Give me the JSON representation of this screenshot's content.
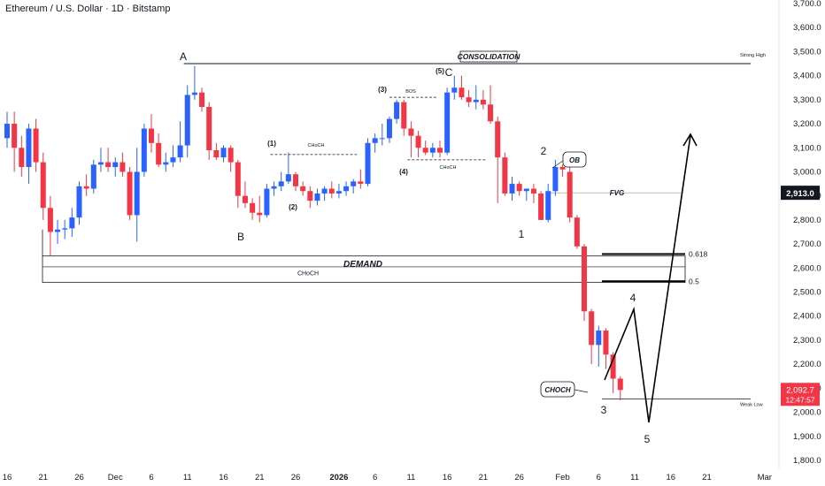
{
  "header": {
    "title": "Ethereum / U.S. Dollar · 1D · Bitstamp"
  },
  "colors": {
    "up": "#2962ff",
    "down": "#f23645",
    "axis_text": "#131722",
    "grid_line": "#b2b5be"
  },
  "chart_data": {
    "type": "candlestick",
    "title": "Ethereum / U.S. Dollar · 1D · Bitstamp",
    "ylim": [
      1750,
      3720
    ],
    "y_ticks": [
      "3,700.0",
      "3,600.0",
      "3,500.0",
      "3,400.0",
      "3,300.0",
      "3,200.0",
      "3,100.0",
      "3,000.0",
      "2,900.0",
      "2,800.0",
      "2,700.0",
      "2,600.0",
      "2,500.0",
      "2,400.0",
      "2,300.0",
      "2,200.0",
      "2,100.0",
      "2,000.0",
      "1,900.0",
      "1,800.0"
    ],
    "y_tick_values": [
      3700,
      3600,
      3500,
      3400,
      3300,
      3200,
      3100,
      3000,
      2900,
      2800,
      2700,
      2600,
      2500,
      2400,
      2300,
      2200,
      2100,
      2000,
      1900,
      1800
    ],
    "x_ticks": [
      {
        "label": "16",
        "day": 0
      },
      {
        "label": "21",
        "day": 5
      },
      {
        "label": "26",
        "day": 10
      },
      {
        "label": "Dec",
        "day": 15
      },
      {
        "label": "6",
        "day": 20
      },
      {
        "label": "11",
        "day": 25
      },
      {
        "label": "16",
        "day": 30
      },
      {
        "label": "21",
        "day": 35
      },
      {
        "label": "26",
        "day": 40
      },
      {
        "label": "2026",
        "day": 46
      },
      {
        "label": "6",
        "day": 51
      },
      {
        "label": "11",
        "day": 56
      },
      {
        "label": "16",
        "day": 61
      },
      {
        "label": "21",
        "day": 66
      },
      {
        "label": "26",
        "day": 71
      },
      {
        "label": "Feb",
        "day": 77
      },
      {
        "label": "6",
        "day": 82
      },
      {
        "label": "11",
        "day": 87
      },
      {
        "label": "16",
        "day": 92
      },
      {
        "label": "21",
        "day": 97
      },
      {
        "label": "Mar",
        "day": 105
      }
    ],
    "candles": [
      {
        "o": 3140,
        "h": 3250,
        "l": 3100,
        "c": 3200
      },
      {
        "o": 3200,
        "h": 3250,
        "l": 3000,
        "c": 3100
      },
      {
        "o": 3100,
        "h": 3150,
        "l": 2980,
        "c": 3020
      },
      {
        "o": 3020,
        "h": 3200,
        "l": 2950,
        "c": 3180
      },
      {
        "o": 3180,
        "h": 3220,
        "l": 3000,
        "c": 3040
      },
      {
        "o": 3040,
        "h": 3080,
        "l": 2800,
        "c": 2850
      },
      {
        "o": 2850,
        "h": 2900,
        "l": 2650,
        "c": 2750
      },
      {
        "o": 2750,
        "h": 2800,
        "l": 2700,
        "c": 2760
      },
      {
        "o": 2760,
        "h": 2800,
        "l": 2720,
        "c": 2765
      },
      {
        "o": 2765,
        "h": 2850,
        "l": 2730,
        "c": 2810
      },
      {
        "o": 2810,
        "h": 2960,
        "l": 2780,
        "c": 2940
      },
      {
        "o": 2940,
        "h": 2990,
        "l": 2900,
        "c": 2930
      },
      {
        "o": 2930,
        "h": 3050,
        "l": 2910,
        "c": 3030
      },
      {
        "o": 3030,
        "h": 3100,
        "l": 3000,
        "c": 3040
      },
      {
        "o": 3040,
        "h": 3100,
        "l": 3000,
        "c": 3020
      },
      {
        "o": 3020,
        "h": 3060,
        "l": 2980,
        "c": 3040
      },
      {
        "o": 3040,
        "h": 3080,
        "l": 2980,
        "c": 3000
      },
      {
        "o": 3000,
        "h": 3020,
        "l": 2800,
        "c": 2820
      },
      {
        "o": 2820,
        "h": 3100,
        "l": 2710,
        "c": 3000
      },
      {
        "o": 3000,
        "h": 3200,
        "l": 2980,
        "c": 3180
      },
      {
        "o": 3180,
        "h": 3240,
        "l": 3080,
        "c": 3120
      },
      {
        "o": 3120,
        "h": 3160,
        "l": 3020,
        "c": 3030
      },
      {
        "o": 3030,
        "h": 3080,
        "l": 3000,
        "c": 3040
      },
      {
        "o": 3040,
        "h": 3110,
        "l": 3020,
        "c": 3060
      },
      {
        "o": 3060,
        "h": 3210,
        "l": 3040,
        "c": 3110
      },
      {
        "o": 3110,
        "h": 3360,
        "l": 3060,
        "c": 3320
      },
      {
        "o": 3320,
        "h": 3440,
        "l": 3300,
        "c": 3330
      },
      {
        "o": 3330,
        "h": 3350,
        "l": 3250,
        "c": 3270
      },
      {
        "o": 3270,
        "h": 3290,
        "l": 3050,
        "c": 3090
      },
      {
        "o": 3090,
        "h": 3120,
        "l": 3050,
        "c": 3060
      },
      {
        "o": 3060,
        "h": 3110,
        "l": 3040,
        "c": 3100
      },
      {
        "o": 3100,
        "h": 3110,
        "l": 3000,
        "c": 3040
      },
      {
        "o": 3040,
        "h": 3050,
        "l": 2850,
        "c": 2900
      },
      {
        "o": 2900,
        "h": 2960,
        "l": 2850,
        "c": 2870
      },
      {
        "o": 2870,
        "h": 2890,
        "l": 2800,
        "c": 2830
      },
      {
        "o": 2830,
        "h": 2900,
        "l": 2790,
        "c": 2820
      },
      {
        "o": 2820,
        "h": 2950,
        "l": 2810,
        "c": 2930
      },
      {
        "o": 2930,
        "h": 2960,
        "l": 2900,
        "c": 2940
      },
      {
        "o": 2940,
        "h": 3000,
        "l": 2920,
        "c": 2960
      },
      {
        "o": 2960,
        "h": 3080,
        "l": 2950,
        "c": 2990
      },
      {
        "o": 2990,
        "h": 3000,
        "l": 2920,
        "c": 2940
      },
      {
        "o": 2940,
        "h": 2960,
        "l": 2900,
        "c": 2920
      },
      {
        "o": 2920,
        "h": 2940,
        "l": 2850,
        "c": 2880
      },
      {
        "o": 2880,
        "h": 2930,
        "l": 2860,
        "c": 2910
      },
      {
        "o": 2910,
        "h": 2940,
        "l": 2880,
        "c": 2930
      },
      {
        "o": 2930,
        "h": 2960,
        "l": 2890,
        "c": 2910
      },
      {
        "o": 2910,
        "h": 2950,
        "l": 2890,
        "c": 2920
      },
      {
        "o": 2920,
        "h": 2960,
        "l": 2900,
        "c": 2940
      },
      {
        "o": 2940,
        "h": 2970,
        "l": 2910,
        "c": 2960
      },
      {
        "o": 2960,
        "h": 3010,
        "l": 2930,
        "c": 2950
      },
      {
        "o": 2950,
        "h": 3140,
        "l": 2940,
        "c": 3120
      },
      {
        "o": 3120,
        "h": 3160,
        "l": 3080,
        "c": 3140
      },
      {
        "o": 3140,
        "h": 3200,
        "l": 3110,
        "c": 3140
      },
      {
        "o": 3140,
        "h": 3230,
        "l": 3120,
        "c": 3220
      },
      {
        "o": 3220,
        "h": 3300,
        "l": 3200,
        "c": 3290
      },
      {
        "o": 3290,
        "h": 3300,
        "l": 3150,
        "c": 3180
      },
      {
        "o": 3180,
        "h": 3210,
        "l": 3060,
        "c": 3150
      },
      {
        "o": 3150,
        "h": 3170,
        "l": 3060,
        "c": 3100
      },
      {
        "o": 3100,
        "h": 3130,
        "l": 3070,
        "c": 3080
      },
      {
        "o": 3080,
        "h": 3120,
        "l": 3060,
        "c": 3100
      },
      {
        "o": 3100,
        "h": 3130,
        "l": 3060,
        "c": 3080
      },
      {
        "o": 3080,
        "h": 3350,
        "l": 3070,
        "c": 3330
      },
      {
        "o": 3330,
        "h": 3400,
        "l": 3300,
        "c": 3350
      },
      {
        "o": 3350,
        "h": 3400,
        "l": 3300,
        "c": 3310
      },
      {
        "o": 3310,
        "h": 3340,
        "l": 3270,
        "c": 3290
      },
      {
        "o": 3290,
        "h": 3360,
        "l": 3260,
        "c": 3300
      },
      {
        "o": 3300,
        "h": 3340,
        "l": 3260,
        "c": 3280
      },
      {
        "o": 3280,
        "h": 3360,
        "l": 3200,
        "c": 3210
      },
      {
        "o": 3210,
        "h": 3230,
        "l": 2870,
        "c": 3060
      },
      {
        "o": 3060,
        "h": 3080,
        "l": 2900,
        "c": 2910
      },
      {
        "o": 2910,
        "h": 2980,
        "l": 2880,
        "c": 2950
      },
      {
        "o": 2950,
        "h": 2960,
        "l": 2900,
        "c": 2920
      },
      {
        "o": 2920,
        "h": 2930,
        "l": 2880,
        "c": 2930
      },
      {
        "o": 2930,
        "h": 2950,
        "l": 2870,
        "c": 2910
      },
      {
        "o": 2910,
        "h": 2920,
        "l": 2800,
        "c": 2800
      },
      {
        "o": 2800,
        "h": 2950,
        "l": 2790,
        "c": 2920
      },
      {
        "o": 2920,
        "h": 3050,
        "l": 2900,
        "c": 3020
      },
      {
        "o": 3020,
        "h": 3030,
        "l": 2980,
        "c": 3010
      },
      {
        "o": 3000,
        "h": 3020,
        "l": 2790,
        "c": 2810
      },
      {
        "o": 2810,
        "h": 2820,
        "l": 2680,
        "c": 2690
      },
      {
        "o": 2690,
        "h": 2700,
        "l": 2380,
        "c": 2420
      },
      {
        "o": 2420,
        "h": 2430,
        "l": 2200,
        "c": 2280
      },
      {
        "o": 2280,
        "h": 2360,
        "l": 2190,
        "c": 2340
      },
      {
        "o": 2340,
        "h": 2350,
        "l": 2180,
        "c": 2240
      },
      {
        "o": 2240,
        "h": 2250,
        "l": 2080,
        "c": 2140
      },
      {
        "o": 2140,
        "h": 2150,
        "l": 2050,
        "c": 2093
      }
    ],
    "last_price": "2,092.7",
    "countdown": "12:47:57",
    "fvg_price": "2,913.0",
    "labels": {
      "A": "A",
      "B": "B",
      "C": "C",
      "c5": "(5)",
      "w1": "(1)",
      "w2": "(2)",
      "w3": "(3)",
      "w4": "(4)",
      "choch_small_1": "CHoCH",
      "choch_small_2": "CHoCH",
      "bos": "BOS",
      "consolidation": "CONSOLIDATION",
      "strong_high": "Strong High",
      "demand": "DEMAND",
      "choch_zone": "CHoCH",
      "fvg": "FVG",
      "ob": "OB",
      "choch_box": "CHOCH",
      "fib_618": "0.618",
      "fib_5": "0.5",
      "n1": "1",
      "n2": "2",
      "n3": "3",
      "n4": "4",
      "n5": "5",
      "weak_low": "Weak Low"
    }
  }
}
